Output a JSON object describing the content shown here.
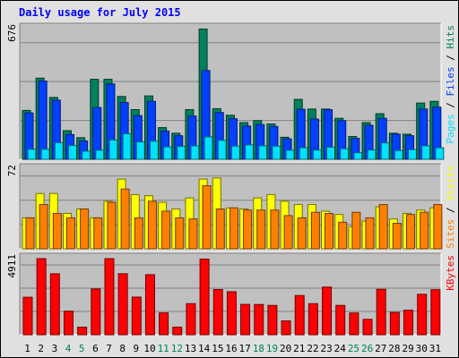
{
  "title": "Daily usage for July 2015",
  "colors": {
    "hits": "#00805c",
    "files": "#0040ff",
    "pages": "#00e0ff",
    "visits": "#ffff00",
    "sites": "#ff8000",
    "kbytes": "#ff0000",
    "title": "#0000ff",
    "plot_bg": "#c0c0c0",
    "frame_bg": "#e0e0e0"
  },
  "chart_data": [
    {
      "type": "bar",
      "title": "Daily usage for July 2015",
      "max_label": "676",
      "ylim": [
        0,
        676
      ],
      "grid": true,
      "categories": [
        "1",
        "2",
        "3",
        "4",
        "5",
        "6",
        "7",
        "8",
        "9",
        "10",
        "11",
        "12",
        "13",
        "14",
        "15",
        "16",
        "17",
        "18",
        "19",
        "20",
        "21",
        "22",
        "23",
        "24",
        "25",
        "26",
        "27",
        "28",
        "29",
        "30",
        "31"
      ],
      "weekend_days": [
        "4",
        "5",
        "11",
        "12",
        "18",
        "19",
        "25",
        "26"
      ],
      "legend": [
        {
          "key": "pages",
          "label": "Pages"
        },
        {
          "key": "files",
          "label": "Files"
        },
        {
          "key": "hits",
          "label": "Hits"
        }
      ],
      "series": [
        {
          "name": "Hits",
          "key": "hits",
          "values": [
            253,
            420,
            320,
            148,
            112,
            414,
            414,
            325,
            257,
            328,
            164,
            135,
            257,
            674,
            262,
            228,
            190,
            200,
            183,
            114,
            310,
            260,
            260,
            212,
            118,
            190,
            236,
            135,
            130,
            291,
            300
          ]
        },
        {
          "name": "Files",
          "key": "files",
          "values": [
            240,
            405,
            306,
            128,
            95,
            268,
            390,
            294,
            226,
            300,
            146,
            122,
            224,
            459,
            242,
            210,
            172,
            180,
            170,
            106,
            259,
            208,
            257,
            200,
            108,
            176,
            212,
            130,
            122,
            260,
            270
          ]
        },
        {
          "name": "Pages",
          "key": "pages",
          "values": [
            52,
            52,
            86,
            72,
            42,
            47,
            100,
            132,
            90,
            94,
            64,
            67,
            70,
            116,
            98,
            68,
            75,
            70,
            68,
            47,
            60,
            48,
            63,
            55,
            34,
            48,
            85,
            45,
            50,
            70,
            60
          ]
        }
      ]
    },
    {
      "type": "bar",
      "max_label": "72",
      "ylim": [
        0,
        72
      ],
      "grid": true,
      "legend": [
        {
          "key": "sites",
          "label": "Sites"
        },
        {
          "key": "visits",
          "label": "Visits"
        }
      ],
      "series": [
        {
          "name": "Visits",
          "key": "visits",
          "values": [
            28,
            50,
            50,
            32,
            36,
            28,
            43,
            63,
            49,
            48,
            42,
            36,
            46,
            63,
            64,
            37,
            36,
            46,
            49,
            43,
            40,
            40,
            34,
            31,
            20,
            25,
            38,
            27,
            32,
            35,
            37
          ]
        },
        {
          "name": "Sites",
          "key": "sites",
          "values": [
            28,
            40,
            32,
            28,
            36,
            28,
            42,
            54,
            28,
            43,
            34,
            28,
            27,
            57,
            36,
            37,
            35,
            35,
            35,
            30,
            28,
            33,
            32,
            24,
            33,
            28,
            40,
            23,
            31,
            33,
            40
          ]
        }
      ]
    },
    {
      "type": "bar",
      "max_label": "4911",
      "ylim": [
        0,
        4911
      ],
      "grid": true,
      "legend": [
        {
          "key": "kbytes",
          "label": "KBytes"
        }
      ],
      "series": [
        {
          "name": "KBytes",
          "key": "kbytes",
          "values": [
            2420,
            4911,
            3935,
            1523,
            491,
            2955,
            4911,
            3936,
            2429,
            3877,
            1410,
            490,
            2007,
            4883,
            2918,
            2776,
            1960,
            1951,
            1892,
            892,
            2531,
            2007,
            3077,
            1892,
            1404,
            995,
            2931,
            1439,
            1585,
            2609,
            2906
          ]
        }
      ]
    }
  ]
}
